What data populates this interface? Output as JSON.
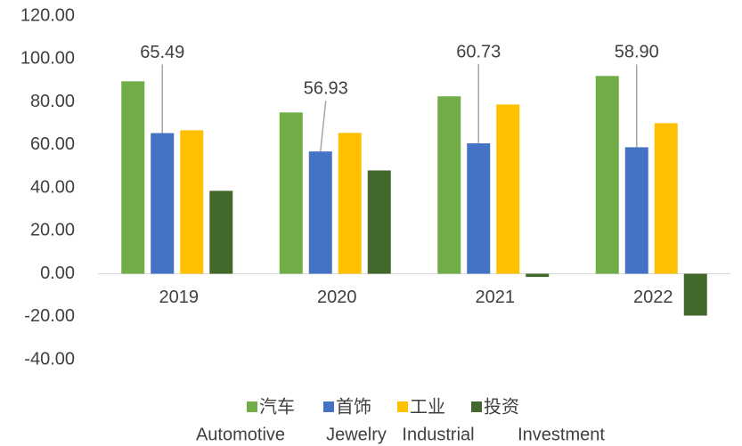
{
  "chart_data": {
    "type": "bar",
    "categories": [
      "2019",
      "2020",
      "2021",
      "2022"
    ],
    "series": [
      {
        "name": "汽车",
        "color": "#70ad47",
        "values": [
          89.6,
          75.1,
          82.6,
          92.1
        ]
      },
      {
        "name": "首饰",
        "color": "#4472c4",
        "values": [
          65.49,
          56.93,
          60.73,
          58.9
        ],
        "value_labels": [
          "65.49",
          "56.93",
          "60.73",
          "58.90"
        ]
      },
      {
        "name": "工业",
        "color": "#ffc000",
        "values": [
          66.8,
          65.6,
          78.8,
          70.1
        ]
      },
      {
        "name": "投资",
        "color": "#43682b",
        "values": [
          38.6,
          48.1,
          -1.5,
          -19.5
        ]
      }
    ],
    "ylim": [
      -40,
      120
    ],
    "yticks": [
      {
        "value": -40,
        "label": "-40.00"
      },
      {
        "value": -20,
        "label": "-20.00"
      },
      {
        "value": 0,
        "label": "0.00"
      },
      {
        "value": 20,
        "label": "20.00"
      },
      {
        "value": 40,
        "label": "40.00"
      },
      {
        "value": 60,
        "label": "60.00"
      },
      {
        "value": 80,
        "label": "80.00"
      },
      {
        "value": 100,
        "label": "100.00"
      },
      {
        "value": 120,
        "label": "120.00"
      }
    ],
    "grid": false,
    "annotations": [
      "Automotive",
      "Jewelry",
      "Industrial",
      "Investment"
    ]
  }
}
